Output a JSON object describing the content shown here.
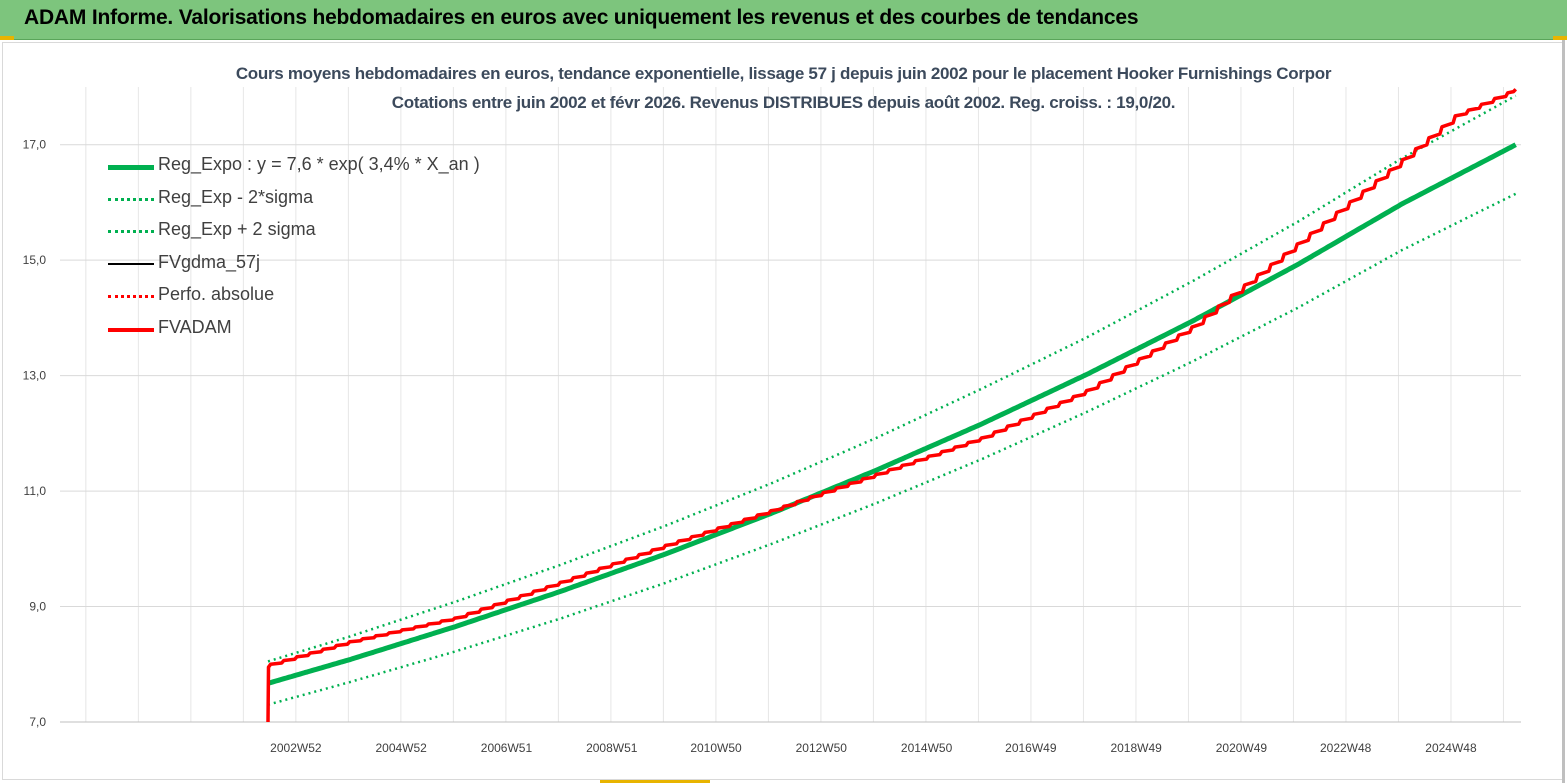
{
  "banner": {
    "title": "ADAM Informe. Valorisations hebdomadaires en euros avec uniquement les revenus et des courbes de tendances"
  },
  "chart_data": {
    "type": "line",
    "title": "Cours moyens hebdomadaires en euros, tendance exponentielle, lissage 57 j depuis juin 2002 pour le placement Hooker Furnishings Corpor",
    "subtitle": "Cotations entre juin 2002 et févr 2026. Revenus DISTRIBUES depuis août 2002. Reg. croiss. : 19,0/20.",
    "xlabel": "",
    "ylabel": "",
    "ylim": [
      7.0,
      18.0
    ],
    "y_ticks": [
      "7,0",
      "9,0",
      "11,0",
      "13,0",
      "15,0",
      "17,0"
    ],
    "x_tick_labels": [
      "2002W52",
      "2004W52",
      "2006W51",
      "2008W51",
      "2010W50",
      "2012W50",
      "2014W50",
      "2016W49",
      "2018W49",
      "2020W49",
      "2022W48",
      "2024W48"
    ],
    "x_tick_years": [
      2002.98,
      2004.98,
      2006.98,
      2008.98,
      2010.96,
      2012.96,
      2014.96,
      2016.94,
      2018.94,
      2020.94,
      2022.92,
      2024.92
    ],
    "xlim": [
      1998.5,
      2026.25
    ],
    "grid": true,
    "legend_position": "top-left",
    "series": [
      {
        "name": "Reg_Expo : y = 7,6 * exp( 3,4% *  X_an )",
        "color": "#00b050",
        "style": "solid-thick",
        "x": [
          2002.45,
          2004,
          2006,
          2008,
          2010,
          2012,
          2014,
          2016,
          2018,
          2020,
          2022,
          2024,
          2026.15
        ],
        "values": [
          7.67,
          8.08,
          8.65,
          9.26,
          9.91,
          10.61,
          11.36,
          12.16,
          13.02,
          13.94,
          14.92,
          15.98,
          17.0
        ]
      },
      {
        "name": "Reg_Exp - 2*sigma",
        "color": "#00b050",
        "style": "dotted",
        "x": [
          2002.45,
          2004,
          2006,
          2008,
          2010,
          2012,
          2014,
          2016,
          2018,
          2020,
          2022,
          2024,
          2026.15
        ],
        "values": [
          7.3,
          7.69,
          8.22,
          8.79,
          9.41,
          10.08,
          10.79,
          11.55,
          12.37,
          13.24,
          14.17,
          15.18,
          16.15
        ]
      },
      {
        "name": "Reg_Exp + 2 sigma",
        "color": "#00b050",
        "style": "dotted",
        "x": [
          2002.45,
          2004,
          2006,
          2008,
          2010,
          2012,
          2014,
          2016,
          2018,
          2020,
          2022,
          2024,
          2026.15
        ],
        "values": [
          8.05,
          8.48,
          9.08,
          9.72,
          10.4,
          11.13,
          11.92,
          12.77,
          13.66,
          14.63,
          15.66,
          16.77,
          17.85
        ]
      },
      {
        "name": "FVgdma_57j",
        "color": "#000000",
        "style": "solid",
        "x": [
          2002.45,
          2002.46,
          2002.5,
          2004,
          2006,
          2008,
          2010,
          2012,
          2014,
          2016,
          2018,
          2020,
          2021,
          2022,
          2024,
          2025,
          2026.15
        ],
        "values": [
          7.0,
          7.95,
          8.0,
          8.39,
          8.8,
          9.42,
          10.06,
          10.66,
          11.29,
          11.92,
          12.74,
          13.84,
          14.57,
          15.28,
          16.74,
          17.5,
          17.96
        ]
      },
      {
        "name": "Perfo. absolue",
        "color": "#ff0000",
        "style": "dotted",
        "x": [
          2002.45,
          2002.46,
          2002.5,
          2004,
          2006,
          2008,
          2010,
          2012,
          2014,
          2016,
          2018,
          2020,
          2021,
          2022,
          2024,
          2025,
          2026.15
        ],
        "values": [
          7.0,
          7.95,
          8.0,
          8.39,
          8.8,
          9.42,
          10.06,
          10.66,
          11.29,
          11.92,
          12.74,
          13.84,
          14.57,
          15.28,
          16.74,
          17.5,
          17.96
        ]
      },
      {
        "name": "FVADAM",
        "color": "#ff0000",
        "style": "solid-thick-stepped",
        "x": [
          2002.45,
          2002.46,
          2002.5,
          2004,
          2006,
          2008,
          2010,
          2012,
          2014,
          2016,
          2018,
          2020,
          2021,
          2022,
          2024,
          2025,
          2026.15
        ],
        "values": [
          7.0,
          7.95,
          8.0,
          8.39,
          8.8,
          9.42,
          10.06,
          10.66,
          11.29,
          11.92,
          12.74,
          13.84,
          14.57,
          15.28,
          16.74,
          17.5,
          17.96
        ]
      }
    ]
  }
}
